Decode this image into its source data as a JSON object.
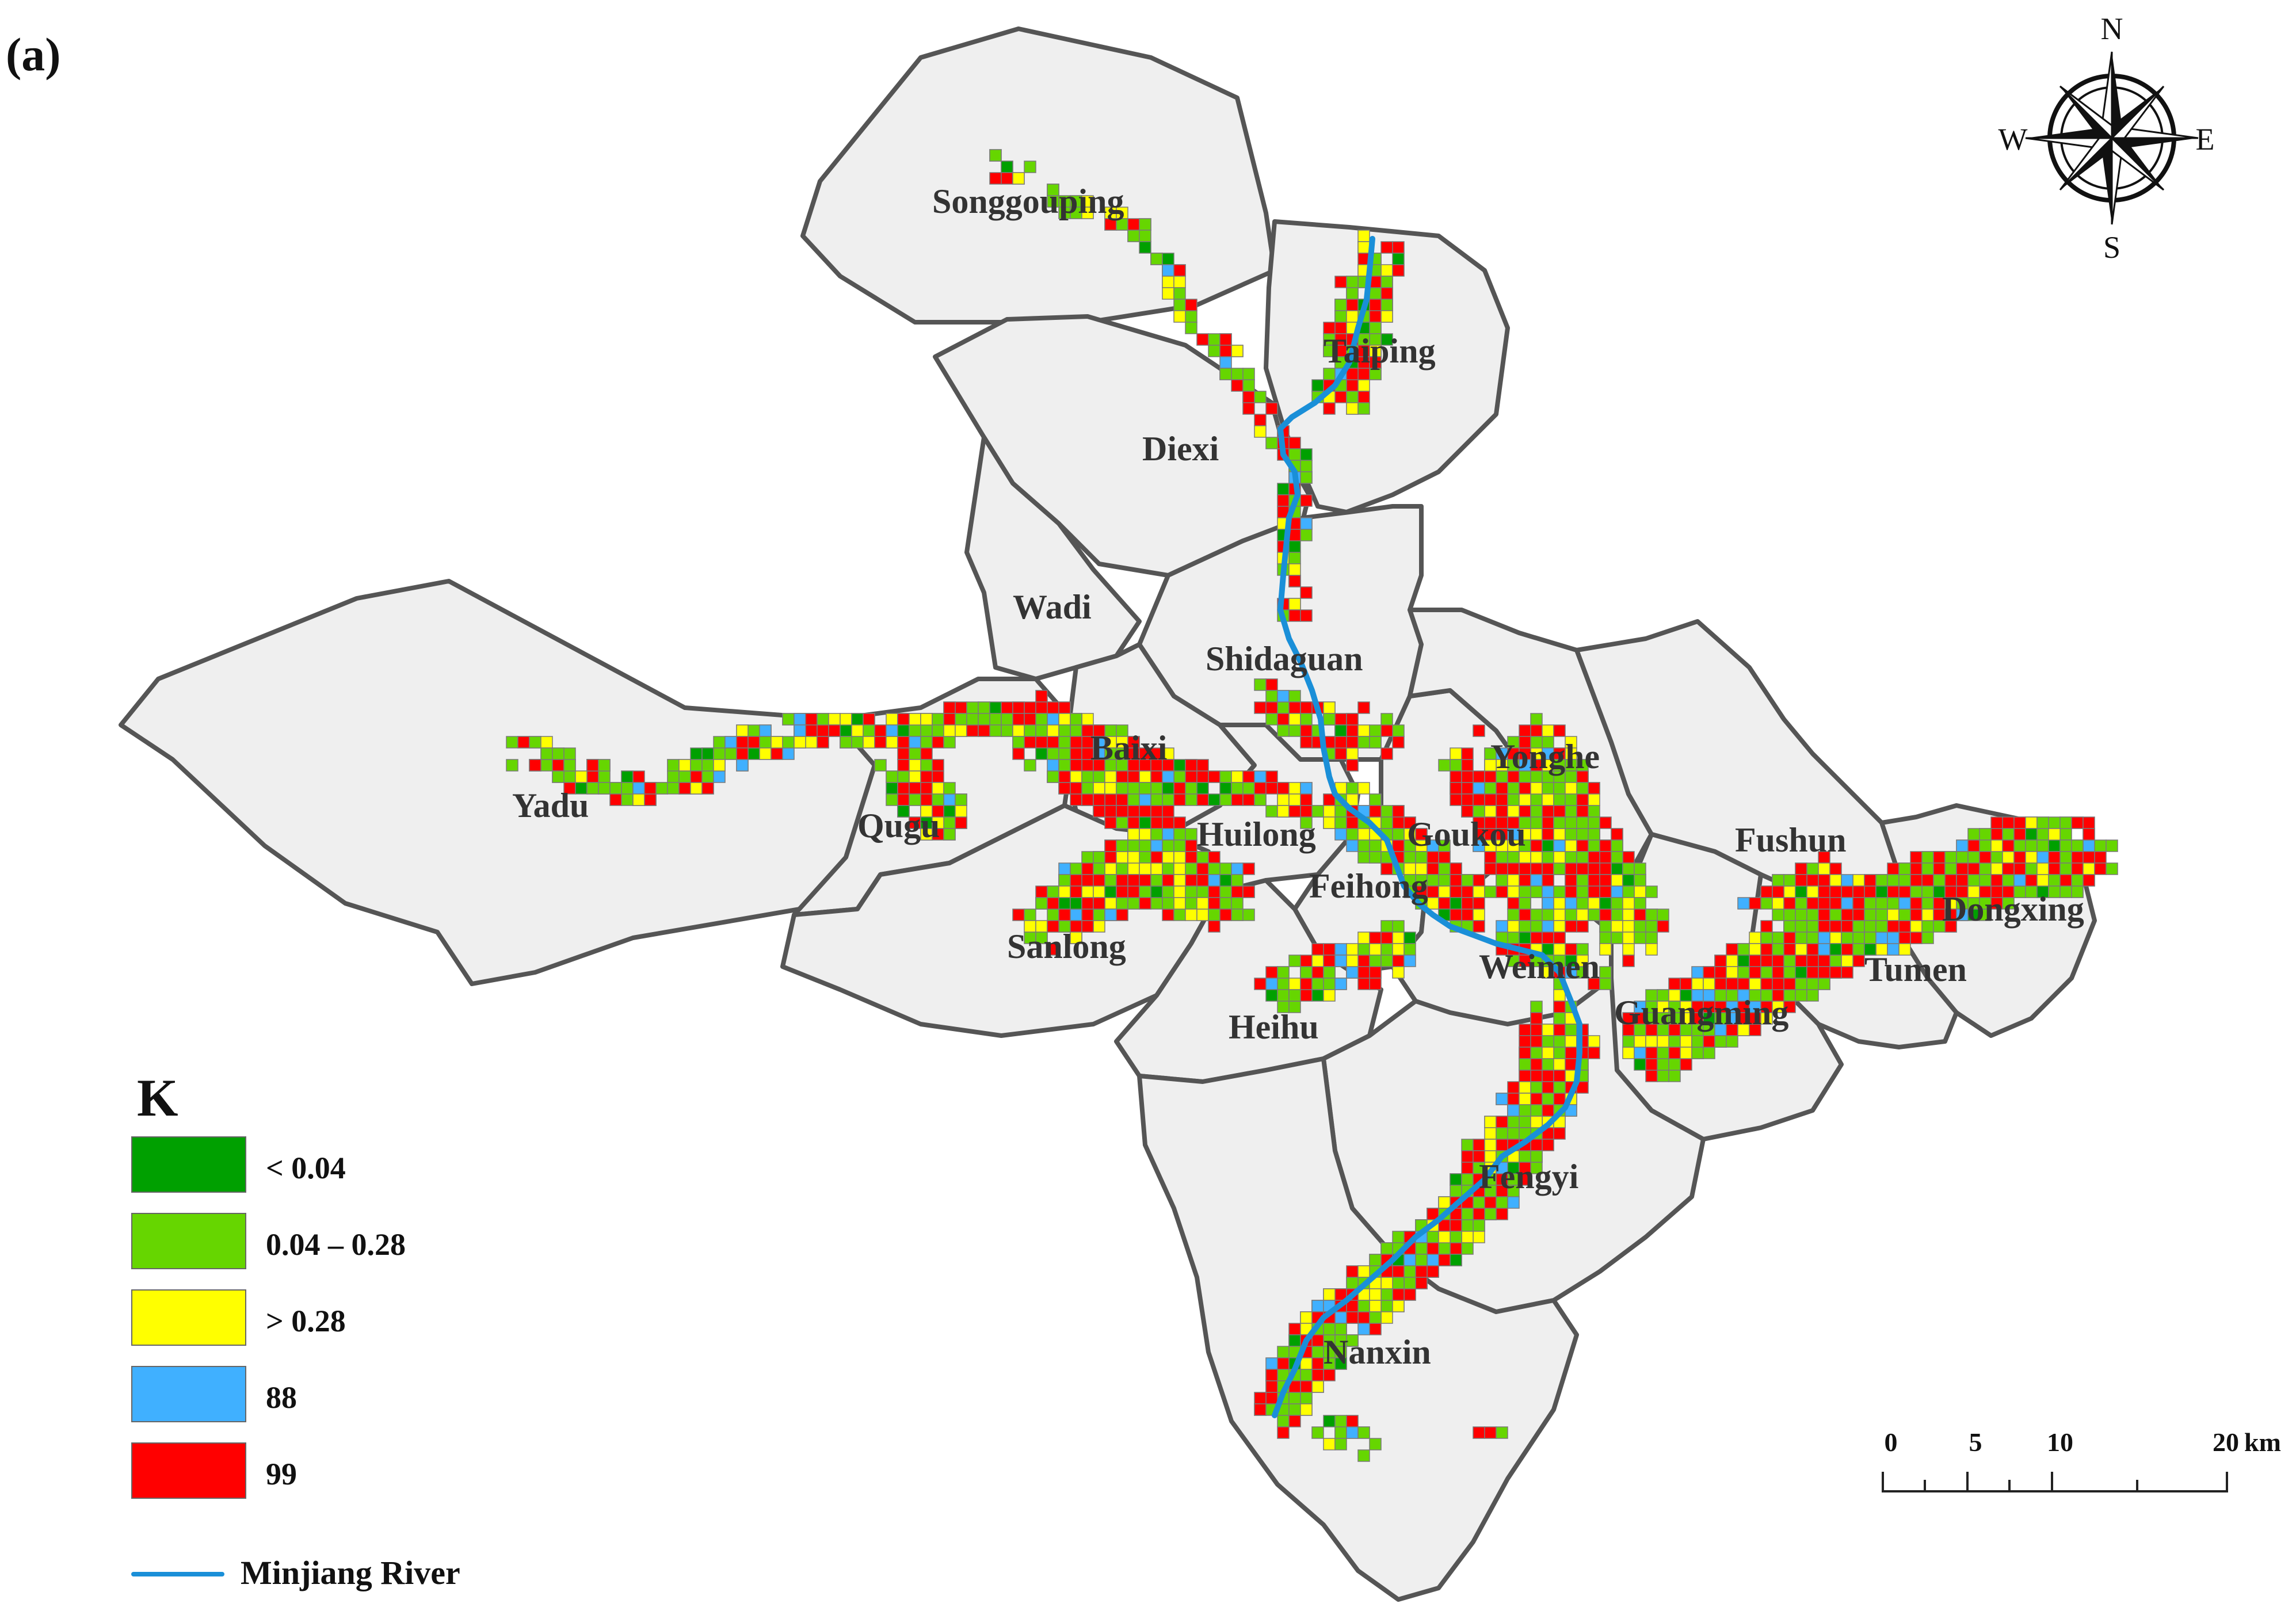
{
  "panel_label": "(a)",
  "compass": {
    "north": "N",
    "south": "S",
    "east": "E",
    "west": "W"
  },
  "legend": {
    "title": "K",
    "classes": [
      {
        "label": "< 0.04",
        "color": "#00a000"
      },
      {
        "label": "0.04 – 0.28",
        "color": "#66d600"
      },
      {
        "label": "> 0.28",
        "color": "#ffff00"
      },
      {
        "label": "88",
        "color": "#40b0ff"
      },
      {
        "label": "99",
        "color": "#ff0000"
      }
    ],
    "river_label": "Minjiang River",
    "river_color": "#1a8fd8"
  },
  "scale_bar": {
    "labels": [
      "0",
      "5",
      "10",
      "20"
    ],
    "unit": "km"
  },
  "colors": {
    "region_fill": "#efefef",
    "region_border": "#555555",
    "background": "#ffffff"
  },
  "towns": [
    {
      "name": "Songgouping"
    },
    {
      "name": "Taiping"
    },
    {
      "name": "Diexi"
    },
    {
      "name": "Wadi"
    },
    {
      "name": "Shidaguan"
    },
    {
      "name": "Baixi"
    },
    {
      "name": "Yadu"
    },
    {
      "name": "Qugu"
    },
    {
      "name": "Huilong"
    },
    {
      "name": "Goukou"
    },
    {
      "name": "Yonghe"
    },
    {
      "name": "Feihong"
    },
    {
      "name": "Sanlong"
    },
    {
      "name": "Weimen"
    },
    {
      "name": "Heihu"
    },
    {
      "name": "Fushun"
    },
    {
      "name": "Dongxing"
    },
    {
      "name": "Tumen"
    },
    {
      "name": "Guangming"
    },
    {
      "name": "Fengyi"
    },
    {
      "name": "Nanxin"
    }
  ]
}
